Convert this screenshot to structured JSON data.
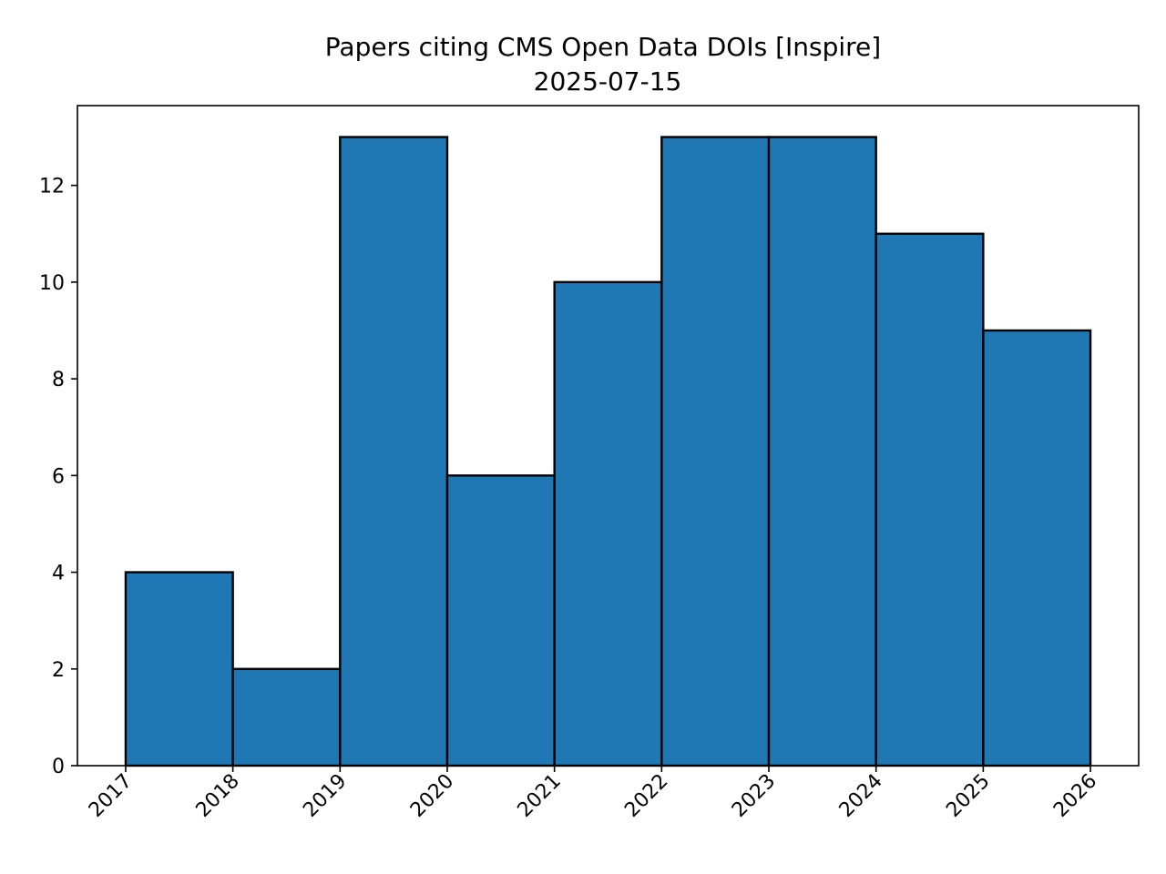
{
  "chart_data": {
    "type": "bar",
    "title": "Papers citing CMS Open Data DOIs [Inspire]",
    "subtitle": "2025-07-15",
    "xlabel": "",
    "ylabel": "",
    "bin_edges": [
      2017,
      2018,
      2019,
      2020,
      2021,
      2022,
      2023,
      2024,
      2025,
      2026
    ],
    "values": [
      4,
      2,
      13,
      6,
      10,
      13,
      13,
      11,
      9
    ],
    "x_ticks": [
      "2017",
      "2018",
      "2019",
      "2020",
      "2021",
      "2022",
      "2023",
      "2024",
      "2025",
      "2026"
    ],
    "y_ticks": [
      "0",
      "2",
      "4",
      "6",
      "8",
      "10",
      "12"
    ],
    "xlim": [
      2016.55,
      2026.45
    ],
    "ylim": [
      0,
      13.65
    ],
    "grid": false,
    "legend": "none",
    "colors": {
      "bar_fill": "#1f77b4",
      "bar_edge": "#000000",
      "axes": "#000000"
    }
  }
}
